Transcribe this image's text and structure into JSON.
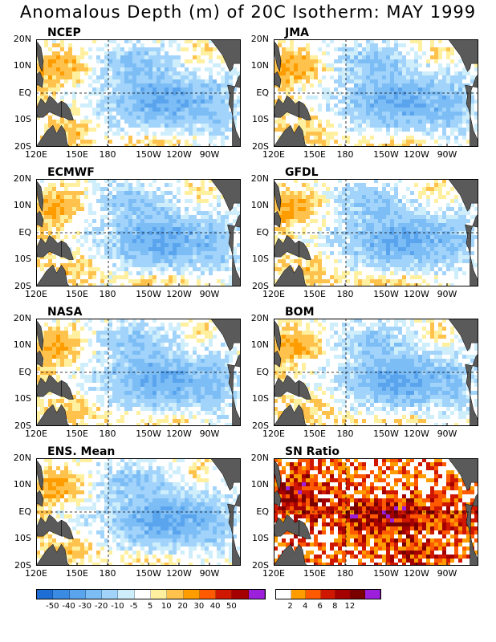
{
  "title": "Anomalous Depth (m) of 20C Isotherm: MAY 1999",
  "x_ticks": [
    "120E",
    "150E",
    "180",
    "150W",
    "120W",
    "90W"
  ],
  "y_ticks": [
    "20N",
    "10N",
    "EQ",
    "10S",
    "20S"
  ],
  "anomaly_colorbar": {
    "labels": [
      "-50",
      "-40",
      "-30",
      "-20",
      "-10",
      "-5",
      "5",
      "10",
      "20",
      "30",
      "40",
      "50"
    ],
    "colors": [
      "#1f6ed6",
      "#3c8be2",
      "#5aa4ee",
      "#7cbdf6",
      "#a2d3fa",
      "#cfeefc",
      "#ffffff",
      "#fff0a0",
      "#ffc24d",
      "#ff9d00",
      "#ff5a00",
      "#d01800",
      "#a50000",
      "#9c1fdc"
    ]
  },
  "sn_colorbar": {
    "labels": [
      "2",
      "4",
      "6",
      "8",
      "12"
    ],
    "colors": [
      "#ffffff",
      "#ff9d00",
      "#ff5a00",
      "#d01800",
      "#a50000",
      "#7a0000",
      "#9c1fdc"
    ]
  },
  "land_color": "#5a5a5a",
  "chart_data": [
    {
      "type": "heatmap",
      "title": "NCEP",
      "field": "anomaly",
      "xlim": [
        "120E",
        "70W"
      ],
      "ylim": [
        "20S",
        "20N"
      ],
      "units": "m"
    },
    {
      "type": "heatmap",
      "title": "JMA",
      "field": "anomaly",
      "xlim": [
        "120E",
        "70W"
      ],
      "ylim": [
        "20S",
        "20N"
      ],
      "units": "m"
    },
    {
      "type": "heatmap",
      "title": "ECMWF",
      "field": "anomaly",
      "xlim": [
        "120E",
        "70W"
      ],
      "ylim": [
        "20S",
        "20N"
      ],
      "units": "m"
    },
    {
      "type": "heatmap",
      "title": "GFDL",
      "field": "anomaly",
      "xlim": [
        "120E",
        "70W"
      ],
      "ylim": [
        "20S",
        "20N"
      ],
      "units": "m"
    },
    {
      "type": "heatmap",
      "title": "NASA",
      "field": "anomaly",
      "xlim": [
        "120E",
        "70W"
      ],
      "ylim": [
        "20S",
        "20N"
      ],
      "units": "m"
    },
    {
      "type": "heatmap",
      "title": "BOM",
      "field": "anomaly",
      "xlim": [
        "120E",
        "70W"
      ],
      "ylim": [
        "20S",
        "20N"
      ],
      "units": "m"
    },
    {
      "type": "heatmap",
      "title": "ENS. Mean",
      "field": "anomaly",
      "xlim": [
        "120E",
        "70W"
      ],
      "ylim": [
        "20S",
        "20N"
      ],
      "units": "m"
    },
    {
      "type": "heatmap",
      "title": "SN Ratio",
      "field": "sn",
      "xlim": [
        "120E",
        "70W"
      ],
      "ylim": [
        "20S",
        "20N"
      ]
    }
  ]
}
